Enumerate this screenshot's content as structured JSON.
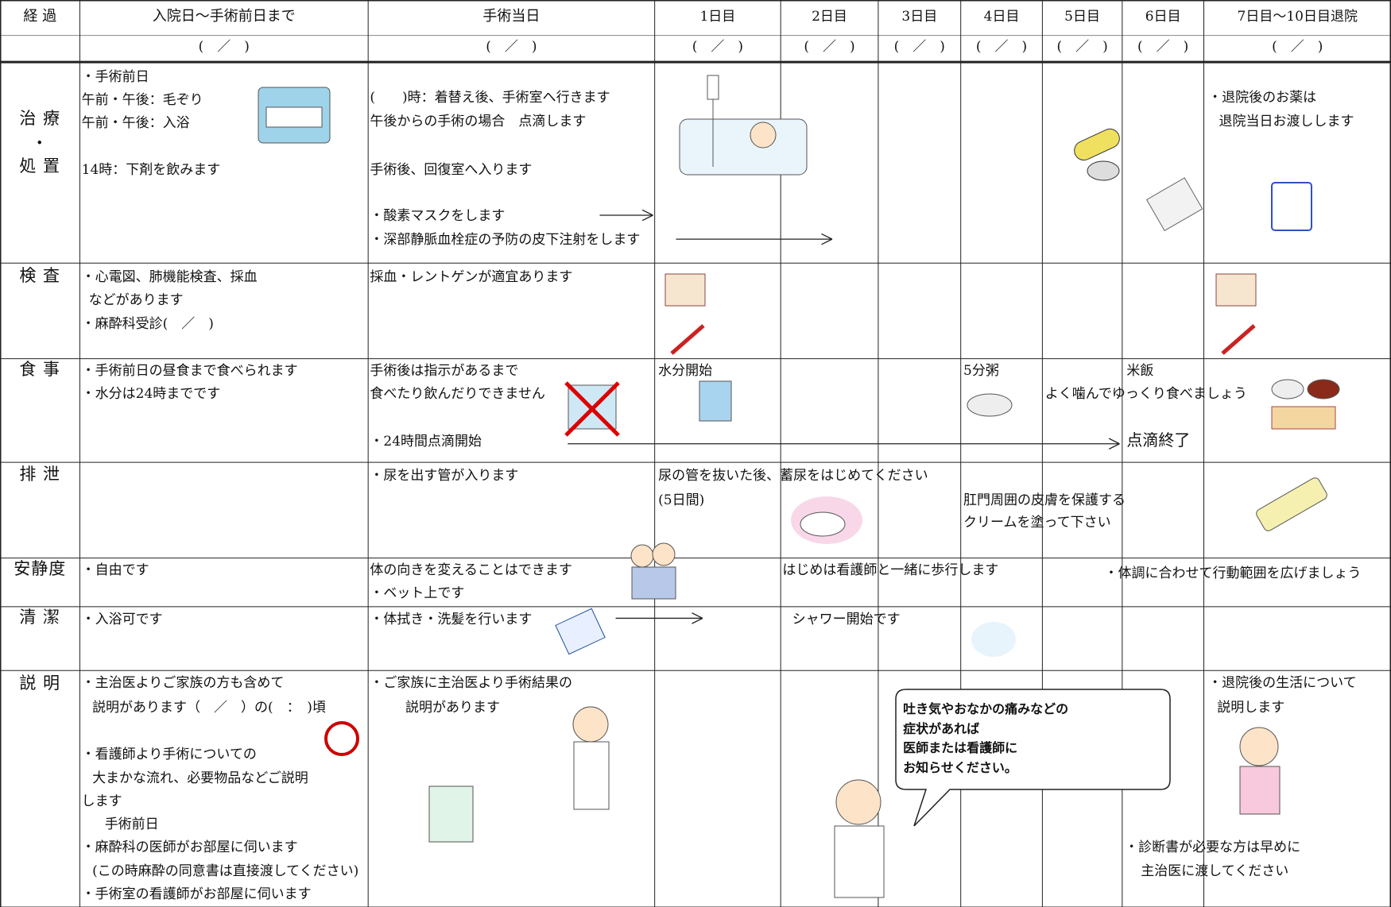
{
  "header": {
    "columns": [
      "経 過",
      "入院日～手術前日まで",
      "手術当日",
      "1日目",
      "2日目",
      "3日目",
      "4日目",
      "5日目",
      "6日目",
      "7日目～10日目退院"
    ],
    "dates": [
      "(　／　)",
      "(　／　)",
      "(　／　)",
      "(　／　)",
      "(　／　)",
      "(　／　)",
      "(　／　)",
      "(　／　)",
      "(　／　)"
    ]
  },
  "rows": [
    {
      "label": [
        "治 療",
        "・",
        "処 置"
      ],
      "texts": [
        "・手術前日",
        "午前・午後：毛ぞり",
        "午前・午後：入浴",
        "14時：下剤を飲みます",
        "(　　)時：着替え後、手術室へ行きます",
        "午後からの手術の場合　点滴します",
        "手術後、回復室へ入ります",
        "・酸素マスクをします",
        "・深部静脈血栓症の予防の皮下注射をします",
        "・退院後のお薬は",
        "退院当日お渡しします"
      ]
    },
    {
      "label": [
        "検 査"
      ],
      "texts": [
        "・心電図、肺機能検査、採血",
        "などがあります",
        "・麻酔科受診(　／　)",
        "採血・レントゲンが適宜あります"
      ]
    },
    {
      "label": [
        "食 事"
      ],
      "texts": [
        "・手術前日の昼食まで食べられます",
        "・水分は24時までです",
        "手術後は指示があるまで",
        "食べたり飲んだりできません",
        "・24時間点滴開始",
        "水分開始",
        "5分粥",
        "米飯",
        "よく噛んでゆっくり食べましょう",
        "点滴終了"
      ]
    },
    {
      "label": [
        "排 泄"
      ],
      "texts": [
        "・尿を出す管が入ります",
        "尿の管を抜いた後、蓄尿をはじめてください",
        "(5日間)",
        "肛門周囲の皮膚を保護する",
        "クリームを塗って下さい"
      ]
    },
    {
      "label": [
        "安静度"
      ],
      "texts": [
        "・自由です",
        "体の向きを変えることはできます",
        "・ベット上です",
        "はじめは看護師と一緒に歩行します",
        "・体調に合わせて行動範囲を広げましょう"
      ]
    },
    {
      "label": [
        "清 潔"
      ],
      "texts": [
        "・入浴可です",
        "・体拭き・洗髪を行います",
        "シャワー開始です"
      ]
    },
    {
      "label": [
        "説 明"
      ],
      "texts": [
        "・主治医よりご家族の方も含めて",
        "説明があります（　／　）の(　：　)頃",
        "・看護師より手術についての",
        "大まかな流れ、必要物品などご説明",
        "します",
        "手術前日",
        "・麻酔科の医師がお部屋に伺います",
        "(この時麻酔の同意書は直接渡してください)",
        "・手術室の看護師がお部屋に伺います",
        "・ご家族に主治医より手術結果の",
        "説明があります",
        "・退院後の生活について",
        "説明します",
        "・診断書が必要な方は早めに",
        "主治医に渡してください"
      ]
    }
  ],
  "callout": [
    "吐き気やおなかの痛みなどの",
    "症状があれば",
    "医師または看護師に",
    "お知らせください。"
  ]
}
